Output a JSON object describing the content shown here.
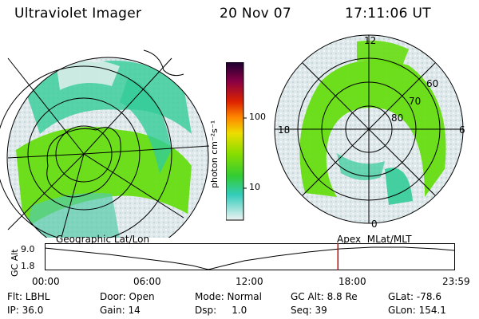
{
  "header": {
    "title": "Ultraviolet Imager",
    "date": "20 Nov 07",
    "time": "17:11:06 UT"
  },
  "colorbar": {
    "label": "photon cm⁻²s⁻¹",
    "ticks": [
      "100",
      "10"
    ]
  },
  "left_panel": {
    "caption": "Geographic Lat/Lon"
  },
  "right_panel": {
    "caption": "Apex  MLat/MLT",
    "lat_labels": [
      "60",
      "70",
      "80"
    ],
    "mlt_labels": {
      "top": "12",
      "left": "18",
      "right": "6",
      "bottom": "0"
    }
  },
  "timeline": {
    "ylabel": "GC Alt",
    "y_ticks": [
      "9.0",
      "1.8"
    ],
    "x_ticks": [
      "00:00",
      "06:00",
      "12:00",
      "18:00",
      "23:59"
    ],
    "current_time_hours": 17.185
  },
  "status": {
    "col1": [
      "Flt: LBHL",
      "IP: 36.0"
    ],
    "col2": [
      "Door: Open",
      "Gain: 14"
    ],
    "col3": [
      "Mode: Normal",
      "Dsp:     1.0"
    ],
    "col4": [
      "GC Alt: 8.8 Re",
      "Seq: 39"
    ],
    "col5": [
      "GLat: -78.6",
      "GLon: 154.1"
    ]
  },
  "colors": {
    "cursor": "#cc0000",
    "aurora_bright": "#66dd11",
    "aurora_mid": "#33cc99",
    "aurora_dim": "#ccdde0"
  }
}
